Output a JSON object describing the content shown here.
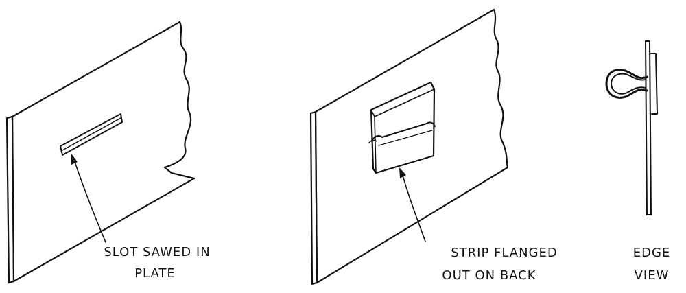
{
  "labels": {
    "slot_line1": "SLOT SAWED IN",
    "slot_line2": "PLATE",
    "strip_line1": "STRIP FLANGED",
    "strip_line2": "OUT ON BACK",
    "edge_line1": "EDGE",
    "edge_line2": "VIEW"
  }
}
